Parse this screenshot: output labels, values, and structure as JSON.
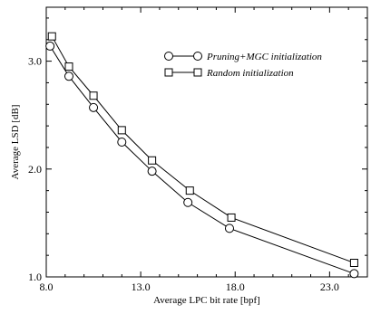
{
  "chart_data": {
    "type": "line",
    "title": "",
    "xlabel": "Average LPC bit rate [bpf]",
    "ylabel": "Average LSD [dB]",
    "xlim": [
      8.0,
      25.0
    ],
    "ylim": [
      1.0,
      3.5
    ],
    "xticks": [
      8.0,
      13.0,
      18.0,
      23.0
    ],
    "xtick_labels": [
      "8.0",
      "13.0",
      "18.0",
      "23.0"
    ],
    "yticks": [
      1.0,
      2.0,
      3.0
    ],
    "ytick_labels": [
      "1.0",
      "2.0",
      "3.0"
    ],
    "grid": false,
    "legend_position": "upper-right",
    "series": [
      {
        "name": "Pruning+MGC initialization",
        "marker": "circle",
        "x": [
          8.2,
          9.2,
          10.5,
          12.0,
          13.6,
          15.5,
          17.7,
          24.3
        ],
        "y": [
          3.14,
          2.86,
          2.57,
          2.25,
          1.98,
          1.69,
          1.45,
          1.03
        ]
      },
      {
        "name": "Random initialization",
        "marker": "square",
        "x": [
          8.3,
          9.2,
          10.5,
          12.0,
          13.6,
          15.6,
          17.8,
          24.3
        ],
        "y": [
          3.23,
          2.95,
          2.68,
          2.36,
          2.08,
          1.8,
          1.55,
          1.13
        ]
      }
    ]
  }
}
